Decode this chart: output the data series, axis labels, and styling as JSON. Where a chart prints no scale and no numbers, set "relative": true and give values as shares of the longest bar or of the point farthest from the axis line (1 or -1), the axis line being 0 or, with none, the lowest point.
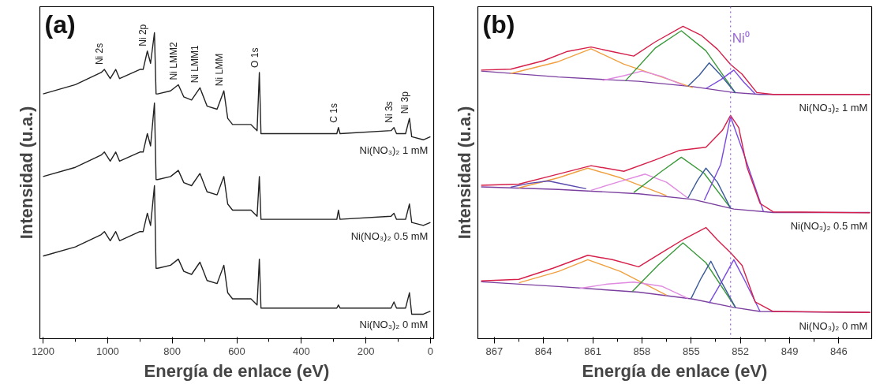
{
  "chart_data": [
    {
      "type": "line",
      "title": "(a)",
      "xlabel": "Energía de enlace (eV)",
      "ylabel": "Intensidad (u.a.)",
      "relative": true,
      "xlim": [
        1210,
        -10
      ],
      "xticks": [
        1200,
        1000,
        800,
        600,
        400,
        200,
        0
      ],
      "series": [
        {
          "name": "Ni(NO₃)₂ 1 mM",
          "color": "#222222",
          "x": [
            1200,
            1100,
            1020,
            1010,
            992,
            975,
            963,
            900,
            890,
            877,
            867,
            855,
            850,
            845,
            805,
            781,
            764,
            740,
            714,
            692,
            661,
            640,
            628,
            613,
            556,
            537,
            530,
            525,
            290,
            285,
            280,
            122,
            113,
            105,
            77,
            65,
            58,
            22,
            0
          ],
          "values": [
            0.8,
            0.83,
            0.87,
            0.88,
            0.85,
            0.88,
            0.85,
            0.88,
            0.88,
            0.94,
            0.9,
            1.0,
            0.8,
            0.8,
            0.81,
            0.83,
            0.79,
            0.78,
            0.82,
            0.76,
            0.75,
            0.81,
            0.72,
            0.7,
            0.7,
            0.68,
            0.87,
            0.67,
            0.67,
            0.69,
            0.67,
            0.68,
            0.69,
            0.67,
            0.67,
            0.72,
            0.66,
            0.65,
            0.66
          ]
        },
        {
          "name": "Ni(NO₃)₂ 0.5 mM",
          "color": "#222222",
          "x": [
            1200,
            1100,
            1020,
            1010,
            992,
            975,
            963,
            900,
            890,
            877,
            867,
            855,
            850,
            845,
            805,
            781,
            764,
            740,
            714,
            692,
            661,
            640,
            628,
            613,
            556,
            537,
            530,
            525,
            290,
            285,
            280,
            122,
            113,
            105,
            77,
            65,
            58,
            22,
            0
          ],
          "values": [
            0.53,
            0.56,
            0.6,
            0.61,
            0.58,
            0.61,
            0.58,
            0.61,
            0.61,
            0.67,
            0.63,
            0.77,
            0.52,
            0.52,
            0.53,
            0.55,
            0.51,
            0.5,
            0.54,
            0.48,
            0.47,
            0.53,
            0.44,
            0.42,
            0.42,
            0.4,
            0.53,
            0.39,
            0.39,
            0.42,
            0.39,
            0.4,
            0.41,
            0.39,
            0.39,
            0.44,
            0.38,
            0.37,
            0.38
          ]
        },
        {
          "name": "Ni(NO₃)₂ 0 mM",
          "color": "#222222",
          "x": [
            1200,
            1100,
            1020,
            1010,
            992,
            975,
            963,
            900,
            890,
            877,
            867,
            855,
            850,
            845,
            805,
            781,
            764,
            740,
            714,
            692,
            661,
            640,
            628,
            613,
            556,
            537,
            530,
            525,
            290,
            285,
            280,
            122,
            113,
            105,
            77,
            65,
            58,
            22,
            0
          ],
          "values": [
            0.27,
            0.3,
            0.34,
            0.35,
            0.32,
            0.35,
            0.32,
            0.35,
            0.35,
            0.41,
            0.37,
            0.5,
            0.23,
            0.23,
            0.24,
            0.26,
            0.22,
            0.21,
            0.25,
            0.19,
            0.18,
            0.24,
            0.15,
            0.13,
            0.13,
            0.11,
            0.26,
            0.1,
            0.1,
            0.11,
            0.1,
            0.1,
            0.12,
            0.1,
            0.1,
            0.15,
            0.08,
            0.08,
            0.09
          ]
        }
      ],
      "annotations": [
        {
          "text": "Ni 2s",
          "x": 1010,
          "y": 0.88
        },
        {
          "text": "Ni 2p",
          "x": 877,
          "y": 0.94
        },
        {
          "text": "Ni LMM2",
          "x": 781,
          "y": 0.83
        },
        {
          "text": "Ni LMM1",
          "x": 714,
          "y": 0.82
        },
        {
          "text": "Ni LMM",
          "x": 640,
          "y": 0.81
        },
        {
          "text": "O 1s",
          "x": 530,
          "y": 0.87
        },
        {
          "text": "C 1s",
          "x": 285,
          "y": 0.69
        },
        {
          "text": "Ni 3s",
          "x": 113,
          "y": 0.69
        },
        {
          "text": "Ni 3p",
          "x": 65,
          "y": 0.72
        }
      ]
    },
    {
      "type": "line",
      "title": "(b)",
      "xlabel": "Energía de enlace (eV)",
      "ylabel": "Intensidad (u.a.)",
      "relative": true,
      "xlim": [
        868,
        844
      ],
      "xticks": [
        867,
        864,
        861,
        858,
        855,
        852,
        849,
        846
      ],
      "ref_lines": [
        {
          "axis": "x",
          "value": 852.6,
          "label": "Ni⁰",
          "color": "#9966dd",
          "line_style": "dotted"
        }
      ],
      "series": [
        {
          "color": "#7b3fa0",
          "x": [
            867.8,
            863.1,
            858.2,
            854.9,
            852.4,
            850.8,
            844.1
          ],
          "values": [
            0.857,
            0.838,
            0.824,
            0.807,
            0.788,
            0.782,
            0.782
          ]
        },
        {
          "color": "#f0a040",
          "x": [
            866.0,
            863.1,
            861.1,
            859.1,
            854.9
          ],
          "values": [
            0.849,
            0.887,
            0.928,
            0.879,
            0.804
          ]
        },
        {
          "color": "#e08ae0",
          "x": [
            860.4,
            859.1,
            858.0,
            856.8,
            855.5
          ],
          "values": [
            0.827,
            0.842,
            0.857,
            0.84,
            0.812
          ]
        },
        {
          "color": "#3a9a3a",
          "x": [
            859.0,
            857.2,
            855.6,
            854.1,
            852.3
          ],
          "values": [
            0.826,
            0.93,
            0.986,
            0.922,
            0.787
          ]
        },
        {
          "color": "#3a5a9a",
          "x": [
            855.2,
            854.5,
            853.9,
            853.2,
            852.3
          ],
          "values": [
            0.808,
            0.844,
            0.883,
            0.844,
            0.787
          ]
        },
        {
          "color": "#7a4ae0",
          "x": [
            854.1,
            853.2,
            852.4,
            851.8,
            851.1
          ],
          "values": [
            0.801,
            0.829,
            0.86,
            0.822,
            0.784
          ]
        },
        {
          "name": "Ni(NO₃)₂ 1 mM",
          "color": "#d6204a",
          "x": [
            867.8,
            866.0,
            864.0,
            862.6,
            861.1,
            859.8,
            858.5,
            857.2,
            855.5,
            854.4,
            853.4,
            852.6,
            851.9,
            851.0,
            850.0,
            844.1
          ],
          "values": [
            0.86,
            0.863,
            0.89,
            0.919,
            0.934,
            0.919,
            0.905,
            0.95,
            1.0,
            0.972,
            0.927,
            0.878,
            0.847,
            0.788,
            0.782,
            0.782
          ]
        },
        {
          "color": "#7b3fa0",
          "x": [
            867.8,
            863.1,
            858.2,
            854.9,
            852.4,
            850.0,
            844.1
          ],
          "values": [
            0.486,
            0.478,
            0.464,
            0.446,
            0.415,
            0.404,
            0.404
          ]
        },
        {
          "color": "#f0a040",
          "x": [
            865.5,
            863.1,
            861.3,
            859.3,
            856.5
          ],
          "values": [
            0.483,
            0.515,
            0.546,
            0.515,
            0.458
          ]
        },
        {
          "color": "#5a4ab0",
          "x": [
            866.0,
            864.9,
            863.7,
            862.6,
            861.4
          ],
          "values": [
            0.485,
            0.497,
            0.505,
            0.493,
            0.48
          ]
        },
        {
          "color": "#e08ae0",
          "x": [
            861.1,
            859.5,
            857.8,
            856.5,
            855.2
          ],
          "values": [
            0.475,
            0.501,
            0.527,
            0.501,
            0.45
          ]
        },
        {
          "color": "#3a9a3a",
          "x": [
            858.5,
            856.8,
            855.6,
            854.2,
            852.6
          ],
          "values": [
            0.468,
            0.536,
            0.581,
            0.529,
            0.418
          ]
        },
        {
          "color": "#3a5a9a",
          "x": [
            855.2,
            854.6,
            854.1,
            853.4,
            852.6
          ],
          "values": [
            0.45,
            0.508,
            0.546,
            0.501,
            0.418
          ]
        },
        {
          "color": "#7a4ae0",
          "x": [
            854.2,
            853.2,
            852.6,
            851.9,
            850.6
          ],
          "values": [
            0.443,
            0.558,
            0.711,
            0.608,
            0.408
          ]
        },
        {
          "name": "Ni(NO₃)₂ 0.5 mM",
          "color": "#d6204a",
          "x": [
            867.8,
            865.5,
            863.4,
            861.1,
            859.1,
            857.2,
            855.7,
            854.1,
            853.1,
            852.6,
            852.1,
            851.6,
            850.8,
            850.0,
            844.1
          ],
          "values": [
            0.491,
            0.495,
            0.523,
            0.554,
            0.536,
            0.572,
            0.603,
            0.613,
            0.667,
            0.715,
            0.676,
            0.55,
            0.433,
            0.406,
            0.403
          ]
        },
        {
          "color": "#7b3fa0",
          "x": [
            867.8,
            863.1,
            858.2,
            854.9,
            852.4,
            850.8,
            844.1
          ],
          "values": [
            0.182,
            0.167,
            0.149,
            0.127,
            0.1,
            0.087,
            0.084
          ]
        },
        {
          "color": "#f0a040",
          "x": [
            865.5,
            863.1,
            861.3,
            859.3,
            856.5
          ],
          "values": [
            0.179,
            0.215,
            0.253,
            0.215,
            0.139
          ]
        },
        {
          "color": "#e08ae0",
          "x": [
            861.8,
            860.1,
            858.5,
            856.8,
            855.2
          ],
          "values": [
            0.161,
            0.175,
            0.181,
            0.168,
            0.129
          ]
        },
        {
          "color": "#3a9a3a",
          "x": [
            858.6,
            857.0,
            855.5,
            854.1,
            852.3
          ],
          "values": [
            0.15,
            0.236,
            0.307,
            0.243,
            0.1
          ]
        },
        {
          "color": "#3a5a9a",
          "x": [
            855.0,
            854.4,
            853.8,
            853.2,
            852.3
          ],
          "values": [
            0.129,
            0.193,
            0.248,
            0.186,
            0.1
          ]
        },
        {
          "color": "#7a4ae0",
          "x": [
            853.9,
            853.1,
            852.4,
            851.8,
            850.8
          ],
          "values": [
            0.114,
            0.186,
            0.253,
            0.193,
            0.087
          ]
        },
        {
          "name": "Ni(NO₃)₂ 0 mM",
          "color": "#d6204a",
          "x": [
            867.8,
            865.5,
            863.4,
            861.3,
            859.8,
            858.2,
            856.5,
            855.4,
            854.1,
            853.4,
            852.6,
            851.9,
            851.1,
            850.0,
            844.1
          ],
          "values": [
            0.185,
            0.19,
            0.226,
            0.267,
            0.253,
            0.23,
            0.285,
            0.32,
            0.356,
            0.316,
            0.275,
            0.235,
            0.118,
            0.087,
            0.084
          ]
        }
      ]
    }
  ]
}
